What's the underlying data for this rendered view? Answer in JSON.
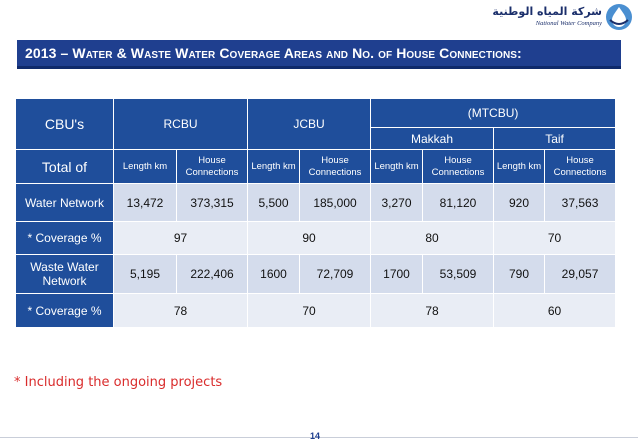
{
  "logo": {
    "arabic_name": "شركة المياه الوطنية",
    "english_name": "National Water Company"
  },
  "title": "2013 – Water & Waste Water Coverage Areas and No. of House Connections:",
  "table": {
    "cbus_label": "CBU's",
    "rcbu": "RCBU",
    "jcbu": "JCBU",
    "mtcbu": "(MTCBU)",
    "makkah": "Makkah",
    "taif": "Taif",
    "total_of": "Total of",
    "length_km": "Length km",
    "house_connections": "House Connections",
    "rows": [
      {
        "label": "Water Network",
        "values": [
          "13,472",
          "373,315",
          "5,500",
          "185,000",
          "3,270",
          "81,120",
          "920",
          "37,563"
        ]
      },
      {
        "label": "* Coverage %",
        "values": [
          "97",
          "90",
          "80",
          "70"
        ]
      },
      {
        "label": "Waste Water Network",
        "values": [
          "5,195",
          "222,406",
          "1600",
          "72,709",
          "1700",
          "53,509",
          "790",
          "29,057"
        ]
      },
      {
        "label": "* Coverage %",
        "values": [
          "78",
          "70",
          "78",
          "60"
        ]
      }
    ]
  },
  "footnote": "* Including the ongoing projects",
  "page_number": "14",
  "colors": {
    "title_bar": "#1f3f8f",
    "header_cells": "#1f4e9b",
    "cell_dark": "#d4dcec",
    "cell_light": "#e9edf5",
    "footnote": "#d92b2b"
  }
}
